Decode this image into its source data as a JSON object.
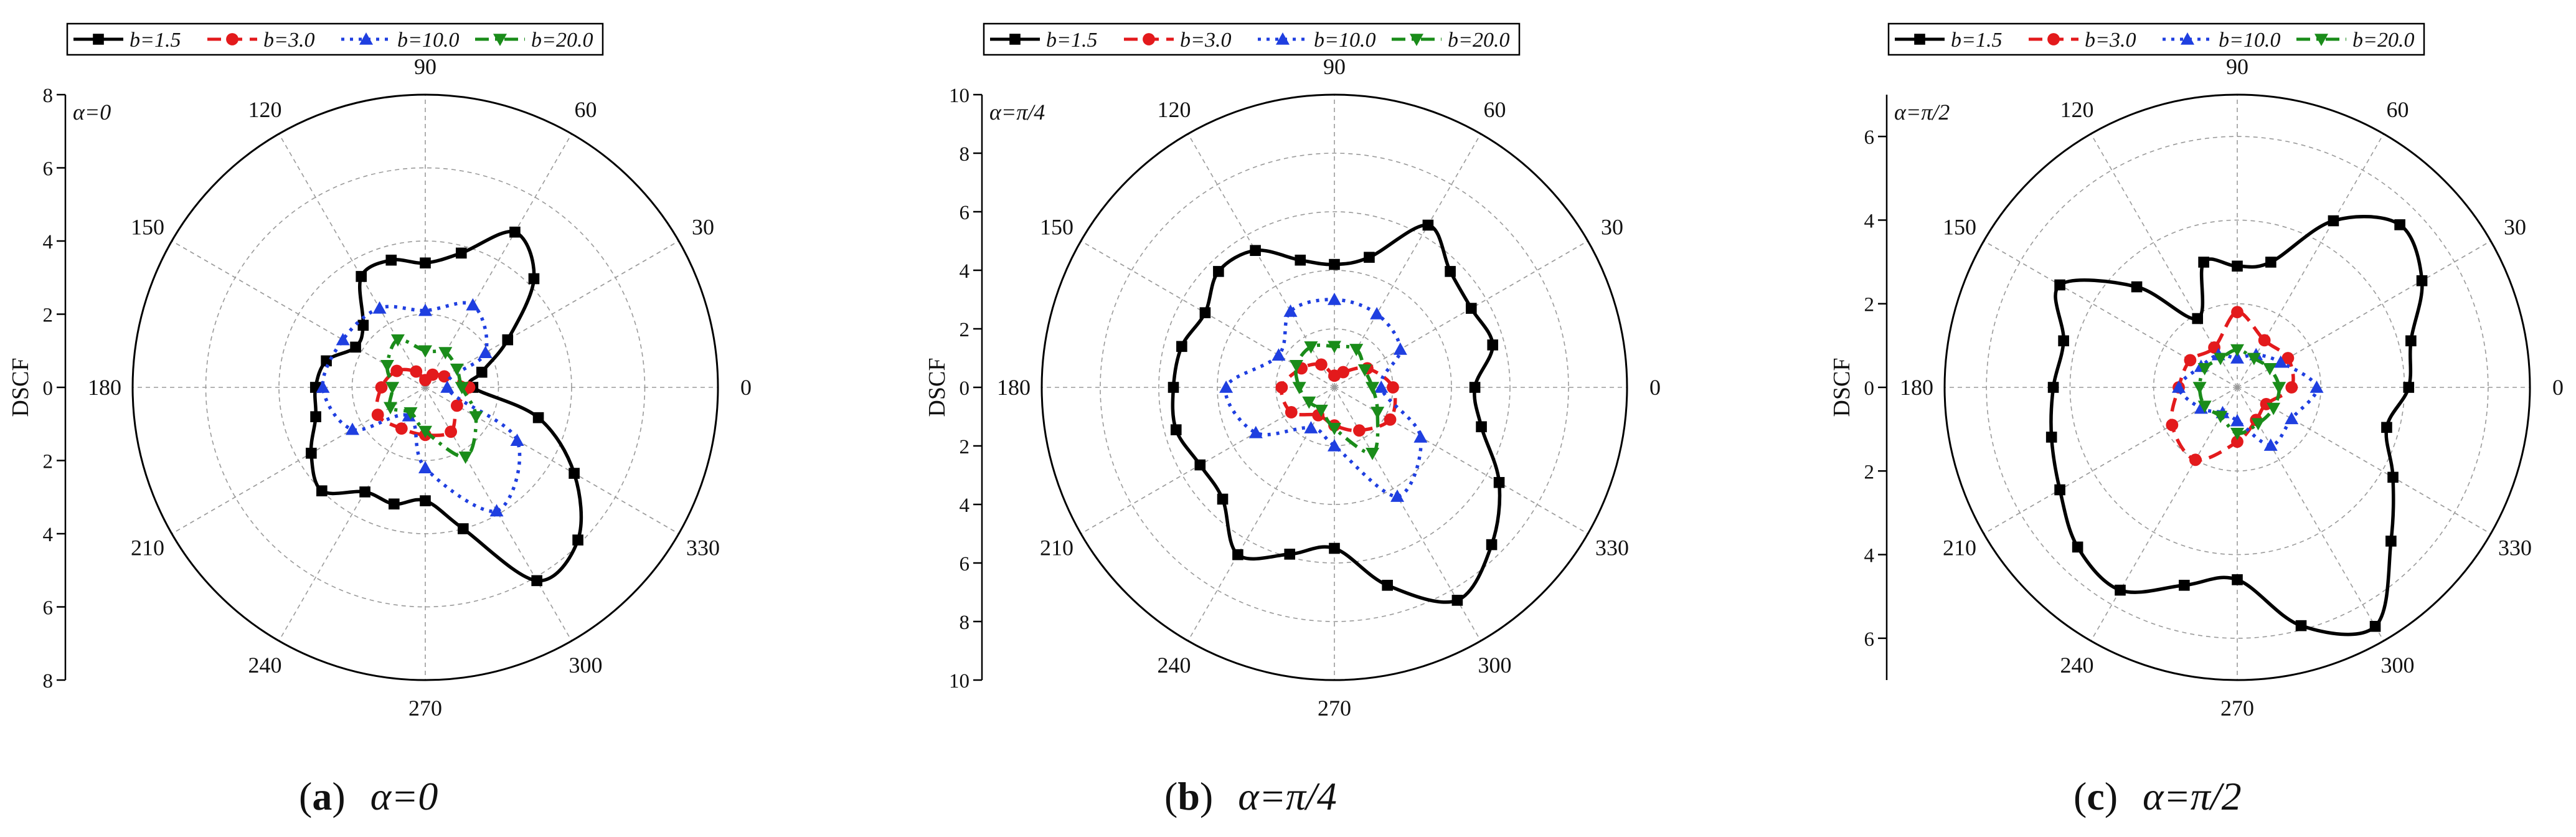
{
  "chart_data": [
    {
      "type": "polar-line",
      "panel": "a",
      "alpha_label": "α=0",
      "caption_letter": "a",
      "caption_text": "α=0",
      "ylabel": "DSCF",
      "rmax": 8,
      "r_ticks": [
        "8",
        "6",
        "4",
        "2",
        "0",
        "2",
        "4",
        "6",
        "8"
      ],
      "angle_labels": [
        "0",
        "30",
        "60",
        "90",
        "120",
        "150",
        "180",
        "210",
        "240",
        "270",
        "300",
        "330"
      ],
      "legend": [
        "b=1.5",
        "b=3.0",
        "b=10.0",
        "b=20.0"
      ],
      "series": [
        {
          "name": "b=1.5",
          "color": "#000000",
          "style": "solid",
          "marker": "square",
          "theta": [
            0,
            15,
            30,
            45,
            60,
            75,
            90,
            105,
            120,
            135,
            150,
            165,
            180,
            195,
            210,
            225,
            240,
            255,
            270,
            285,
            300,
            315,
            330,
            345
          ],
          "r": [
            1.3,
            1.6,
            2.6,
            4.2,
            4.9,
            3.8,
            3.4,
            3.6,
            3.5,
            2.4,
            2.2,
            2.8,
            3.0,
            3.1,
            3.6,
            4.0,
            3.3,
            3.3,
            3.1,
            4.0,
            6.1,
            5.9,
            4.7,
            3.2
          ]
        },
        {
          "name": "b=3.0",
          "color": "#e31a1c",
          "style": "dashed",
          "marker": "circle",
          "theta": [
            0,
            30,
            60,
            90,
            120,
            150,
            180,
            210,
            240,
            270,
            300,
            330
          ],
          "r": [
            1.2,
            0.6,
            0.4,
            0.2,
            0.5,
            0.9,
            1.2,
            1.5,
            1.3,
            1.3,
            1.4,
            1.0
          ]
        },
        {
          "name": "b=10.0",
          "color": "#1f3fe0",
          "style": "dotted",
          "marker": "triangle-up",
          "theta": [
            0,
            30,
            60,
            90,
            120,
            150,
            180,
            210,
            240,
            270,
            300,
            330
          ],
          "r": [
            0.6,
            1.9,
            2.6,
            2.1,
            2.5,
            2.6,
            2.8,
            2.3,
            0.9,
            2.2,
            3.9,
            2.9
          ]
        },
        {
          "name": "b=20.0",
          "color": "#1a8c1a",
          "style": "dashdot",
          "marker": "triangle-down",
          "theta": [
            0,
            30,
            60,
            90,
            120,
            150,
            180,
            210,
            240,
            270,
            300,
            330
          ],
          "r": [
            1.0,
            1.0,
            1.1,
            1.0,
            1.5,
            1.2,
            0.9,
            1.1,
            0.8,
            1.2,
            2.2,
            1.6
          ]
        }
      ]
    },
    {
      "type": "polar-line",
      "panel": "b",
      "alpha_label": "α=π/4",
      "caption_letter": "b",
      "caption_text": "α=π/4",
      "ylabel": "DSCF",
      "rmax": 10,
      "r_ticks": [
        "10",
        "8",
        "6",
        "4",
        "2",
        "0",
        "2",
        "4",
        "6",
        "8",
        "10"
      ],
      "angle_labels": [
        "0",
        "30",
        "60",
        "90",
        "120",
        "150",
        "180",
        "210",
        "240",
        "270",
        "300",
        "330"
      ],
      "legend": [
        "b=1.5",
        "b=3.0",
        "b=10.0",
        "b=20.0"
      ],
      "series": [
        {
          "name": "b=1.5",
          "color": "#000000",
          "style": "solid",
          "marker": "square",
          "theta": [
            0,
            15,
            30,
            45,
            60,
            75,
            90,
            105,
            120,
            135,
            150,
            165,
            180,
            195,
            210,
            225,
            240,
            255,
            270,
            285,
            300,
            315,
            330,
            345
          ],
          "r": [
            4.8,
            5.6,
            5.4,
            5.6,
            6.4,
            4.6,
            4.2,
            4.5,
            5.4,
            5.6,
            5.1,
            5.4,
            5.5,
            5.6,
            5.3,
            5.4,
            6.6,
            5.9,
            5.5,
            7.0,
            8.4,
            7.6,
            6.5,
            5.2
          ]
        },
        {
          "name": "b=3.0",
          "color": "#e31a1c",
          "style": "dashed",
          "marker": "circle",
          "theta": [
            0,
            30,
            60,
            90,
            120,
            150,
            180,
            210,
            240,
            270,
            300,
            330
          ],
          "r": [
            2.0,
            1.3,
            0.6,
            0.4,
            0.9,
            1.3,
            1.8,
            1.7,
            1.1,
            1.3,
            1.7,
            2.2
          ]
        },
        {
          "name": "b=10.0",
          "color": "#1f3fe0",
          "style": "dotted",
          "marker": "triangle-up",
          "theta": [
            0,
            30,
            60,
            90,
            120,
            150,
            180,
            210,
            240,
            270,
            300,
            330
          ],
          "r": [
            1.6,
            2.6,
            2.9,
            3.0,
            3.0,
            2.2,
            3.7,
            3.1,
            1.6,
            2.0,
            4.3,
            3.4
          ]
        },
        {
          "name": "b=20.0",
          "color": "#1a8c1a",
          "style": "dashdot",
          "marker": "triangle-down",
          "theta": [
            0,
            30,
            60,
            90,
            120,
            150,
            180,
            210,
            240,
            270,
            300,
            330
          ],
          "r": [
            1.3,
            1.2,
            1.5,
            1.4,
            1.6,
            1.5,
            1.2,
            1.0,
            0.9,
            1.4,
            2.6,
            1.7
          ]
        }
      ]
    },
    {
      "type": "polar-line",
      "panel": "c",
      "alpha_label": "α=π/2",
      "caption_letter": "c",
      "caption_text": "α=π/2",
      "ylabel": "DSCF",
      "rmax": 7,
      "r_ticks": [
        "6",
        "4",
        "2",
        "0",
        "2",
        "4",
        "6"
      ],
      "angle_labels": [
        "0",
        "30",
        "60",
        "90",
        "120",
        "150",
        "180",
        "210",
        "240",
        "270",
        "300",
        "330"
      ],
      "legend": [
        "b=1.5",
        "b=3.0",
        "b=10.0",
        "b=20.0"
      ],
      "series": [
        {
          "name": "b=1.5",
          "color": "#000000",
          "style": "solid",
          "marker": "square",
          "theta": [
            0,
            15,
            30,
            45,
            60,
            75,
            90,
            105,
            120,
            135,
            150,
            165,
            180,
            195,
            210,
            225,
            240,
            255,
            270,
            285,
            300,
            315,
            330,
            345
          ],
          "r": [
            4.1,
            4.3,
            5.1,
            5.5,
            4.6,
            3.1,
            2.9,
            3.1,
            1.9,
            3.4,
            4.9,
            4.3,
            4.4,
            4.6,
            4.9,
            5.4,
            5.6,
            4.9,
            4.6,
            5.9,
            6.6,
            5.2,
            4.3,
            3.7
          ]
        },
        {
          "name": "b=3.0",
          "color": "#e31a1c",
          "style": "dashed",
          "marker": "circle",
          "theta": [
            0,
            30,
            60,
            90,
            120,
            150,
            180,
            210,
            240,
            270,
            300,
            330
          ],
          "r": [
            1.3,
            1.4,
            1.3,
            1.8,
            1.1,
            1.3,
            1.4,
            1.8,
            2.0,
            1.3,
            0.9,
            0.8
          ]
        },
        {
          "name": "b=10.0",
          "color": "#1f3fe0",
          "style": "dotted",
          "marker": "triangle-up",
          "theta": [
            0,
            30,
            60,
            90,
            120,
            150,
            180,
            210,
            240,
            270,
            300,
            330
          ],
          "r": [
            1.9,
            1.2,
            0.9,
            0.7,
            0.9,
            1.0,
            1.4,
            1.0,
            0.7,
            0.8,
            1.6,
            1.5
          ]
        },
        {
          "name": "b=20.0",
          "color": "#1a8c1a",
          "style": "dashdot",
          "marker": "triangle-down",
          "theta": [
            0,
            30,
            60,
            90,
            120,
            150,
            180,
            210,
            240,
            270,
            300,
            330
          ],
          "r": [
            1.0,
            0.9,
            0.8,
            0.9,
            0.8,
            0.9,
            0.9,
            0.9,
            0.8,
            1.1,
            1.0,
            1.0
          ]
        }
      ]
    }
  ]
}
